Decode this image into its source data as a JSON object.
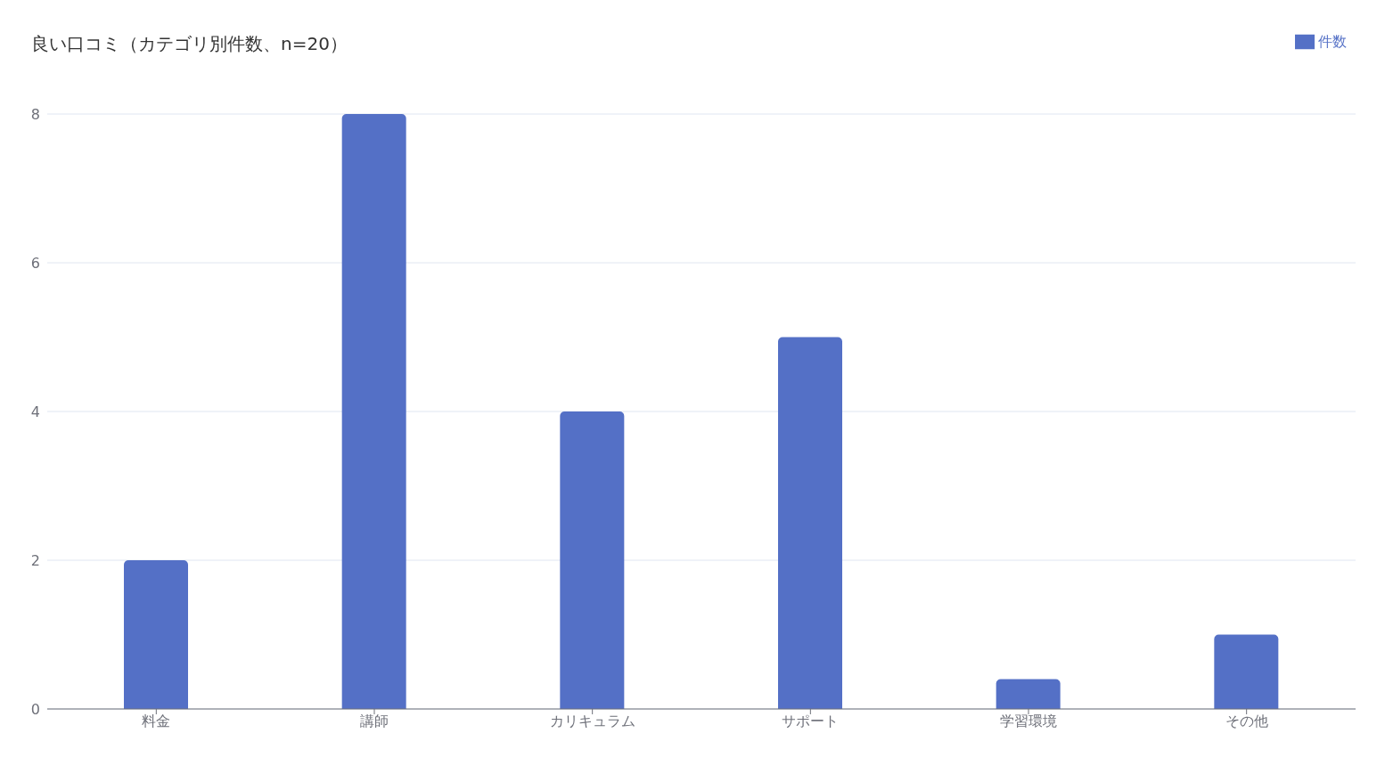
{
  "chart_data": {
    "type": "bar",
    "title": "良い口コミ（カテゴリ別件数、n=20）",
    "categories": [
      "料金",
      "講師",
      "カリキュラム",
      "サポート",
      "学習環境",
      "その他"
    ],
    "series": [
      {
        "name": "件数",
        "color": "#5470c6",
        "values": [
          2,
          8,
          4,
          5,
          0.4,
          1
        ]
      }
    ],
    "ylim": [
      0,
      8
    ],
    "yticks": [
      0,
      2,
      4,
      6,
      8
    ],
    "grid": "y",
    "legend": "top right"
  }
}
